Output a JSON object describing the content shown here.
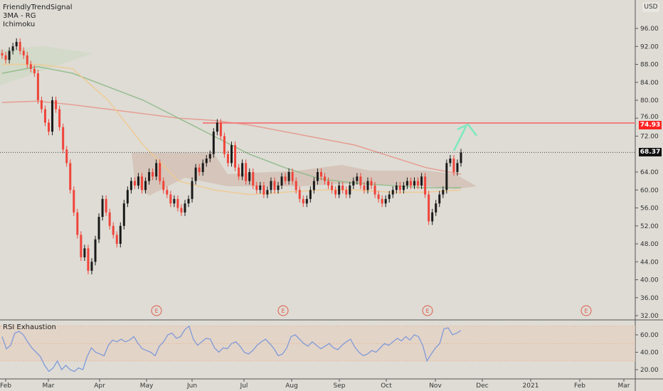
{
  "legend": {
    "indicators": [
      "FriendlyTrendSignal",
      "3MA - RG",
      "Ichimoku"
    ],
    "rsi_title": "RSI Exhaustion"
  },
  "currency": "USD",
  "price_tags": {
    "resistance": "74.93",
    "last": "68.37"
  },
  "earnings_marker": "E",
  "colors": {
    "up": "#1a1a1a",
    "down": "#f0443a",
    "resistance": "#f08080",
    "arrow": "#7de8c0",
    "ma200": "#e8958a",
    "ma100": "#8fb98a",
    "ma50": "#f2c98e",
    "rsi": "#7f9ad8",
    "background": "#dedcd5"
  },
  "chart_data": [
    {
      "type": "candlestick",
      "title": "",
      "ylim": [
        30,
        100
      ],
      "y_ticks": [
        "96.00",
        "92.00",
        "88.00",
        "84.00",
        "80.00",
        "76.00",
        "72.00",
        "64.00",
        "60.00",
        "56.00",
        "52.00",
        "48.00",
        "44.00",
        "40.00",
        "36.00",
        "32.00"
      ],
      "x_ticks": [
        "Feb",
        "Mar",
        "Apr",
        "May",
        "Jun",
        "Jul",
        "Aug",
        "Sep",
        "Oct",
        "Nov",
        "Dec",
        "2021",
        "Feb",
        "Mar"
      ],
      "closes": [
        90,
        89,
        91,
        92,
        93,
        91,
        90,
        88,
        87,
        86,
        80,
        78,
        75,
        73,
        80,
        78,
        74,
        69,
        66,
        60,
        55,
        50,
        45,
        47,
        42,
        44,
        49,
        54,
        58,
        55,
        52,
        50,
        48,
        52,
        57,
        60,
        62,
        61,
        63,
        60,
        62,
        64,
        63,
        66,
        62,
        60,
        59,
        57,
        58,
        56,
        55,
        57,
        58,
        62,
        65,
        64,
        66,
        67,
        68,
        73,
        75,
        72,
        68,
        66,
        70,
        65,
        63,
        66,
        62,
        64,
        61,
        60,
        61,
        59,
        60,
        62,
        60,
        61,
        63,
        62,
        64,
        62,
        60,
        58,
        57,
        58,
        60,
        62,
        64,
        63,
        62,
        61,
        60,
        59,
        61,
        60,
        59,
        61,
        62,
        63,
        61,
        60,
        62,
        61,
        59,
        58,
        57,
        58,
        59,
        60,
        61,
        60,
        61,
        62,
        61,
        62,
        61,
        63,
        59,
        53,
        55,
        57,
        59,
        60,
        66,
        67,
        64,
        66,
        68.37
      ],
      "overlays": [
        {
          "name": "",
          "role": "ma200",
          "values": [
            79.5,
            79.8,
            79,
            78,
            77,
            76,
            75.5,
            74.5,
            73,
            71.5,
            70,
            67.5,
            65,
            63.5
          ]
        },
        {
          "name": "",
          "role": "ma100",
          "values": [
            86,
            87.5,
            86,
            83,
            80,
            76,
            72,
            68,
            65,
            62.5,
            61.5,
            61,
            60.5,
            60.5
          ]
        },
        {
          "name": "",
          "role": "ma50",
          "values": [
            88,
            88,
            87,
            80,
            70,
            62,
            60,
            59,
            59.5,
            60,
            60,
            59.5,
            59.5,
            60
          ]
        }
      ],
      "resistance_level": 74.93,
      "last_price": 68.37
    },
    {
      "type": "line",
      "title": "RSI Exhaustion",
      "ylim": [
        15,
        75
      ],
      "y_ticks": [
        "60.00",
        "40.00",
        "20.00"
      ],
      "bands": [
        30,
        50,
        70
      ],
      "values": [
        58,
        44,
        48,
        62,
        64,
        60,
        52,
        45,
        40,
        35,
        25,
        18,
        22,
        30,
        20,
        25,
        20,
        18,
        22,
        20,
        35,
        45,
        40,
        38,
        36,
        48,
        54,
        52,
        55,
        52,
        54,
        58,
        50,
        44,
        42,
        40,
        36,
        47,
        52,
        60,
        62,
        56,
        58,
        66,
        70,
        55,
        48,
        52,
        56,
        55,
        45,
        40,
        45,
        44,
        50,
        52,
        47,
        40,
        38,
        42,
        48,
        52,
        55,
        50,
        44,
        36,
        38,
        45,
        58,
        60,
        55,
        50,
        47,
        52,
        48,
        44,
        47,
        50,
        45,
        43,
        48,
        52,
        55,
        46,
        40,
        36,
        38,
        42,
        40,
        45,
        50,
        48,
        52,
        56,
        53,
        58,
        54,
        60,
        58,
        48,
        30,
        38,
        45,
        50,
        67,
        68,
        60,
        62,
        65
      ]
    }
  ]
}
